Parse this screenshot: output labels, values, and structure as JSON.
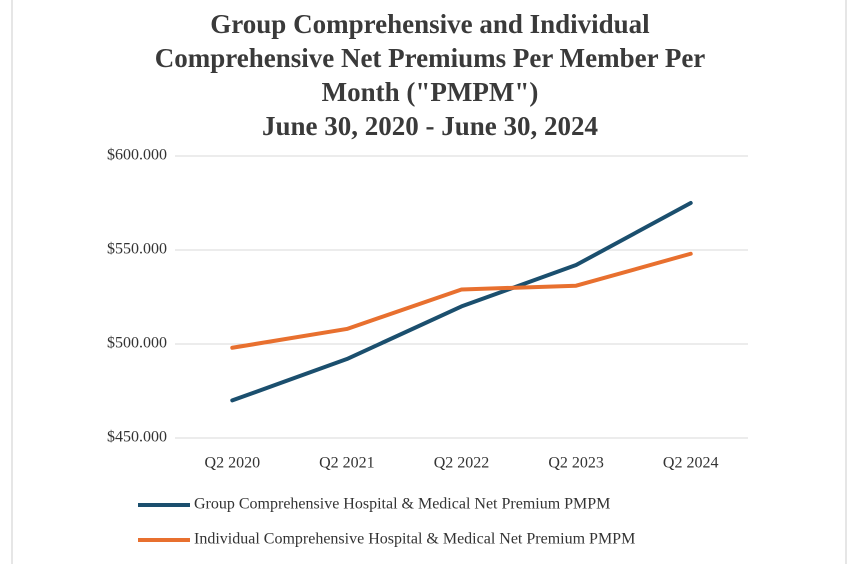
{
  "chart_data": {
    "type": "line",
    "title": [
      "Group Comprehensive  and Individual",
      "Comprehensive Net Premiums Per Member Per",
      "Month (\"PMPM\")",
      "June 30, 2020 - June 30, 2024"
    ],
    "categories": [
      "Q2 2020",
      "Q2 2021",
      "Q2 2022",
      "Q2 2023",
      "Q2 2024"
    ],
    "series": [
      {
        "name": "Group Comprehensive Hospital & Medical Net Premium PMPM",
        "color": "#1b4f6e",
        "values": [
          470,
          492,
          520,
          542,
          575
        ]
      },
      {
        "name": "Individual Comprehensive Hospital & Medical Net Premium PMPM",
        "color": "#e8702f",
        "values": [
          498,
          508,
          529,
          531,
          548
        ]
      }
    ],
    "ylim": [
      450,
      600
    ],
    "yticks": [
      {
        "value": 450,
        "label": "$450.000"
      },
      {
        "value": 500,
        "label": "$500.000"
      },
      {
        "value": 550,
        "label": "$550.000"
      },
      {
        "value": 600,
        "label": "$600.000"
      }
    ],
    "grid": true,
    "legend": "bottom"
  }
}
